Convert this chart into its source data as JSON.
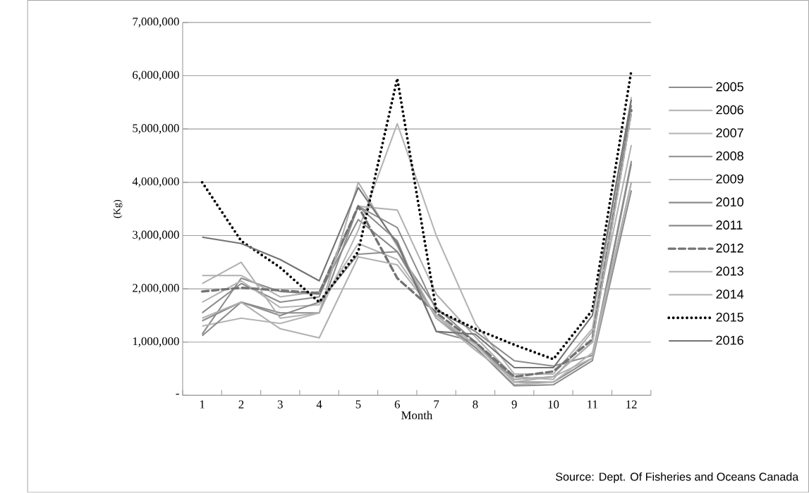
{
  "chart_data": {
    "type": "line",
    "xlabel": "Month",
    "ylabel": "(Kg)",
    "categories": [
      "1",
      "2",
      "3",
      "4",
      "5",
      "6",
      "7",
      "8",
      "9",
      "10",
      "11",
      "12"
    ],
    "ylim": [
      0,
      7000000
    ],
    "yticks": [
      {
        "value": 0,
        "label": "-"
      },
      {
        "value": 1000000,
        "label": "1,000,000"
      },
      {
        "value": 2000000,
        "label": "2,000,000"
      },
      {
        "value": 3000000,
        "label": "3,000,000"
      },
      {
        "value": 4000000,
        "label": "4,000,000"
      },
      {
        "value": 5000000,
        "label": "5,000,000"
      },
      {
        "value": 6000000,
        "label": "6,000,000"
      },
      {
        "value": 7000000,
        "label": "7,000,000"
      }
    ],
    "grid": "y",
    "legend": "right",
    "annotations": [
      "Source: Dept. Of Fisheries and Oceans Canada"
    ],
    "series": [
      {
        "name": "2005",
        "color": "#8c8c8c",
        "line_style": "solid",
        "values": [
          1150000,
          2200000,
          1950000,
          1900000,
          3300000,
          2700000,
          1650000,
          1000000,
          250000,
          250000,
          700000,
          4350000
        ]
      },
      {
        "name": "2006",
        "color": "#b0b0b0",
        "line_style": "solid",
        "values": [
          2250000,
          2250000,
          1850000,
          1950000,
          3550000,
          3480000,
          1900000,
          1100000,
          350000,
          300000,
          1200000,
          4700000
        ]
      },
      {
        "name": "2007",
        "color": "#b4b4b4",
        "line_style": "solid",
        "values": [
          1300000,
          1450000,
          1350000,
          1550000,
          3100000,
          5100000,
          3000000,
          1350000,
          400000,
          400000,
          1250000,
          5600000
        ]
      },
      {
        "name": "2008",
        "color": "#8c8c8c",
        "line_style": "solid",
        "values": [
          1550000,
          2100000,
          1750000,
          1850000,
          3550000,
          3150000,
          1600000,
          1200000,
          650000,
          550000,
          750000,
          4400000
        ]
      },
      {
        "name": "2009",
        "color": "#b4b4b4",
        "line_style": "solid",
        "values": [
          1750000,
          2150000,
          1650000,
          1700000,
          2850000,
          2550000,
          1500000,
          900000,
          200000,
          250000,
          800000,
          4000000
        ]
      },
      {
        "name": "2010",
        "color": "#8c8c8c",
        "line_style": "solid",
        "values": [
          1120000,
          1750000,
          1500000,
          1750000,
          2650000,
          2700000,
          1450000,
          900000,
          180000,
          200000,
          650000,
          3850000
        ]
      },
      {
        "name": "2011",
        "color": "#8c8c8c",
        "line_style": "solid",
        "values": [
          1400000,
          1750000,
          1550000,
          1550000,
          3550000,
          2900000,
          1200000,
          1000000,
          300000,
          350000,
          1000000,
          5450000
        ]
      },
      {
        "name": "2012",
        "color": "#737373",
        "line_style": "dashed",
        "values": [
          1950000,
          2020000,
          1970000,
          1920000,
          3550000,
          2200000,
          1550000,
          1000000,
          350000,
          450000,
          1050000,
          5350000
        ]
      },
      {
        "name": "2013",
        "color": "#b0b0b0",
        "line_style": "solid",
        "values": [
          2100000,
          2500000,
          1450000,
          1550000,
          4000000,
          2800000,
          1450000,
          850000,
          300000,
          350000,
          1000000,
          5300000
        ]
      },
      {
        "name": "2014",
        "color": "#b0b0b0",
        "line_style": "solid",
        "values": [
          1450000,
          1750000,
          1250000,
          1080000,
          2600000,
          2450000,
          1500000,
          950000,
          250000,
          350000,
          700000,
          4000000
        ]
      },
      {
        "name": "2015",
        "color": "#000000",
        "line_style": "dotted",
        "values": [
          4000000,
          2900000,
          2400000,
          1750000,
          2700000,
          5950000,
          1600000,
          1250000,
          950000,
          680000,
          1600000,
          6100000
        ]
      },
      {
        "name": "2016",
        "color": "#737373",
        "line_style": "solid",
        "values": [
          2970000,
          2850000,
          2550000,
          2150000,
          3900000,
          2850000,
          1200000,
          1150000,
          520000,
          520000,
          1500000,
          5550000
        ]
      }
    ]
  }
}
